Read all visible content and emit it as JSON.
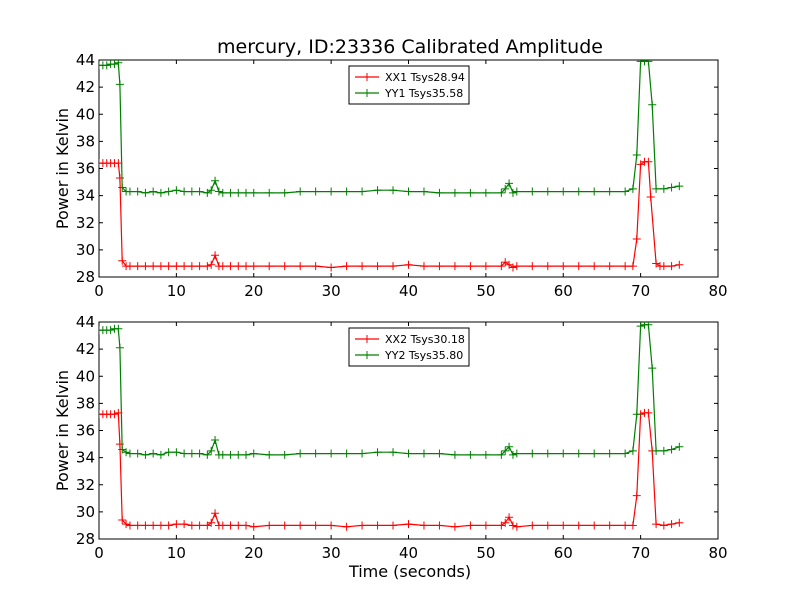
{
  "chart_data": [
    {
      "type": "line",
      "title": "mercury, ID:23336 Calibrated Amplitude",
      "xlabel": "",
      "ylabel": "Power in Kelvin",
      "xlim": [
        0,
        80
      ],
      "ylim": [
        28,
        44
      ],
      "xticks": [
        "0",
        "10",
        "20",
        "30",
        "40",
        "50",
        "60",
        "70",
        "80"
      ],
      "yticks": [
        "28",
        "30",
        "32",
        "34",
        "36",
        "38",
        "40",
        "42",
        "44"
      ],
      "grid": false,
      "legend_position": "top-center",
      "series": [
        {
          "name": "XX1 Tsys28.94",
          "color": "#ff0000",
          "marker": "+",
          "x": [
            0,
            0.5,
            1,
            1.5,
            2,
            2.5,
            2.7,
            3,
            3.5,
            4,
            5,
            6,
            7,
            8,
            9,
            10,
            11,
            12,
            13,
            14,
            14.5,
            15,
            15.5,
            16,
            17,
            18,
            19,
            20,
            22,
            24,
            26,
            28,
            30,
            32,
            34,
            36,
            38,
            40,
            42,
            44,
            46,
            48,
            50,
            52,
            52.5,
            53,
            53.5,
            54,
            56,
            58,
            60,
            62,
            64,
            66,
            68,
            69,
            69.5,
            70,
            70.5,
            71,
            71.3,
            72,
            72.5,
            73,
            74,
            75
          ],
          "y": [
            36.4,
            36.4,
            36.4,
            36.4,
            36.4,
            36.4,
            35.3,
            29.2,
            28.8,
            28.8,
            28.8,
            28.8,
            28.8,
            28.8,
            28.8,
            28.8,
            28.8,
            28.8,
            28.8,
            28.8,
            28.9,
            29.6,
            28.8,
            28.8,
            28.8,
            28.8,
            28.8,
            28.8,
            28.8,
            28.8,
            28.8,
            28.8,
            28.7,
            28.8,
            28.8,
            28.8,
            28.8,
            28.9,
            28.8,
            28.8,
            28.8,
            28.8,
            28.8,
            28.8,
            29.1,
            28.9,
            28.7,
            28.8,
            28.8,
            28.8,
            28.8,
            28.8,
            28.8,
            28.8,
            28.8,
            28.8,
            30.8,
            36.3,
            36.5,
            36.5,
            33.9,
            29.0,
            28.8,
            28.8,
            28.8,
            28.9
          ]
        },
        {
          "name": "YY1 Tsys35.58",
          "color": "#008000",
          "marker": "+",
          "x": [
            0,
            0.5,
            1,
            1.5,
            2,
            2.5,
            2.7,
            3,
            3.5,
            4,
            5,
            6,
            7,
            8,
            9,
            10,
            11,
            12,
            13,
            14,
            14.5,
            15,
            15.5,
            16,
            17,
            18,
            19,
            20,
            22,
            24,
            26,
            28,
            30,
            32,
            34,
            36,
            38,
            40,
            42,
            44,
            46,
            48,
            50,
            52,
            52.5,
            53,
            53.5,
            54,
            56,
            58,
            60,
            62,
            64,
            66,
            68,
            69,
            69.5,
            70,
            70.5,
            71,
            71.5,
            72,
            73,
            74,
            75
          ],
          "y": [
            43.6,
            43.6,
            43.6,
            43.7,
            43.7,
            43.8,
            42.2,
            34.6,
            34.3,
            34.3,
            34.3,
            34.2,
            34.3,
            34.2,
            34.3,
            34.4,
            34.3,
            34.3,
            34.3,
            34.2,
            34.4,
            35.1,
            34.3,
            34.2,
            34.2,
            34.2,
            34.2,
            34.2,
            34.2,
            34.2,
            34.3,
            34.3,
            34.3,
            34.3,
            34.3,
            34.4,
            34.4,
            34.3,
            34.3,
            34.2,
            34.2,
            34.2,
            34.2,
            34.2,
            34.5,
            34.9,
            34.2,
            34.3,
            34.3,
            34.3,
            34.3,
            34.3,
            34.3,
            34.3,
            34.3,
            34.5,
            37.0,
            43.9,
            43.9,
            43.9,
            40.7,
            34.5,
            34.5,
            34.6,
            34.7
          ]
        }
      ]
    },
    {
      "type": "line",
      "title": "",
      "xlabel": "Time (seconds)",
      "ylabel": "Power in Kelvin",
      "xlim": [
        0,
        80
      ],
      "ylim": [
        28,
        44
      ],
      "xticks": [
        "0",
        "10",
        "20",
        "30",
        "40",
        "50",
        "60",
        "70",
        "80"
      ],
      "yticks": [
        "28",
        "30",
        "32",
        "34",
        "36",
        "38",
        "40",
        "42",
        "44"
      ],
      "grid": false,
      "legend_position": "top-center",
      "series": [
        {
          "name": "XX2 Tsys30.18",
          "color": "#ff0000",
          "marker": "+",
          "x": [
            0,
            0.5,
            1,
            1.5,
            2,
            2.5,
            2.7,
            3,
            3.5,
            4,
            5,
            6,
            7,
            8,
            9,
            10,
            11,
            12,
            13,
            14,
            14.5,
            15,
            15.5,
            16,
            17,
            18,
            19,
            20,
            22,
            24,
            26,
            28,
            30,
            32,
            34,
            36,
            38,
            40,
            42,
            44,
            46,
            48,
            50,
            52,
            52.5,
            53,
            53.5,
            54,
            56,
            58,
            60,
            62,
            64,
            66,
            68,
            69,
            69.5,
            70,
            70.5,
            71,
            71.5,
            72,
            73,
            74,
            75
          ],
          "y": [
            37.2,
            37.2,
            37.2,
            37.2,
            37.2,
            37.3,
            35.0,
            29.4,
            29.1,
            29.0,
            29.0,
            29.0,
            29.0,
            29.0,
            29.0,
            29.1,
            29.1,
            29.0,
            29.0,
            29.0,
            29.2,
            29.9,
            29.0,
            29.0,
            29.0,
            29.0,
            29.0,
            28.9,
            29.0,
            29.0,
            29.0,
            29.0,
            29.0,
            28.9,
            29.0,
            29.0,
            29.0,
            29.1,
            29.0,
            29.0,
            28.9,
            29.0,
            29.0,
            29.0,
            29.2,
            29.6,
            29.0,
            28.9,
            29.0,
            29.0,
            29.0,
            29.0,
            29.0,
            29.0,
            29.0,
            29.0,
            31.2,
            37.2,
            37.3,
            37.3,
            34.5,
            29.1,
            29.0,
            29.1,
            29.2
          ]
        },
        {
          "name": "YY2 Tsys35.80",
          "color": "#008000",
          "marker": "+",
          "x": [
            0,
            0.5,
            1,
            1.5,
            2,
            2.5,
            2.7,
            3,
            3.5,
            4,
            5,
            6,
            7,
            8,
            9,
            10,
            11,
            12,
            13,
            14,
            14.5,
            15,
            15.5,
            16,
            17,
            18,
            19,
            20,
            22,
            24,
            26,
            28,
            30,
            32,
            34,
            36,
            38,
            40,
            42,
            44,
            46,
            48,
            50,
            52,
            52.5,
            53,
            53.5,
            54,
            56,
            58,
            60,
            62,
            64,
            66,
            68,
            69,
            69.5,
            70,
            70.5,
            71,
            71.5,
            72,
            73,
            74,
            75
          ],
          "y": [
            43.4,
            43.4,
            43.4,
            43.4,
            43.5,
            43.5,
            42.1,
            34.6,
            34.4,
            34.3,
            34.3,
            34.2,
            34.3,
            34.2,
            34.4,
            34.4,
            34.3,
            34.3,
            34.3,
            34.2,
            34.5,
            35.3,
            34.2,
            34.2,
            34.2,
            34.2,
            34.2,
            34.3,
            34.2,
            34.2,
            34.3,
            34.3,
            34.3,
            34.3,
            34.3,
            34.4,
            34.4,
            34.3,
            34.3,
            34.3,
            34.2,
            34.2,
            34.2,
            34.2,
            34.5,
            34.8,
            34.2,
            34.3,
            34.3,
            34.3,
            34.3,
            34.3,
            34.3,
            34.3,
            34.3,
            34.5,
            37.2,
            43.7,
            43.8,
            43.8,
            40.6,
            34.5,
            34.5,
            34.6,
            34.8
          ]
        }
      ]
    }
  ]
}
